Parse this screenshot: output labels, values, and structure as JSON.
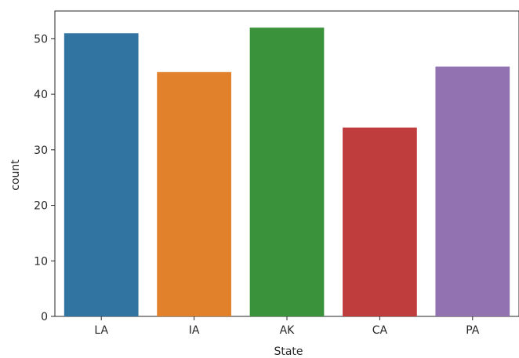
{
  "chart_data": {
    "type": "bar",
    "title": "",
    "xlabel": "State",
    "ylabel": "count",
    "categories": [
      "LA",
      "IA",
      "AK",
      "CA",
      "PA"
    ],
    "values": [
      51,
      44,
      52,
      34,
      45
    ],
    "colors": [
      "#3274a1",
      "#e1812c",
      "#3a923a",
      "#c03d3e",
      "#9372b2"
    ],
    "ylim": [
      0,
      55
    ],
    "yticks": [
      0,
      10,
      20,
      30,
      40,
      50
    ],
    "grid": false
  }
}
